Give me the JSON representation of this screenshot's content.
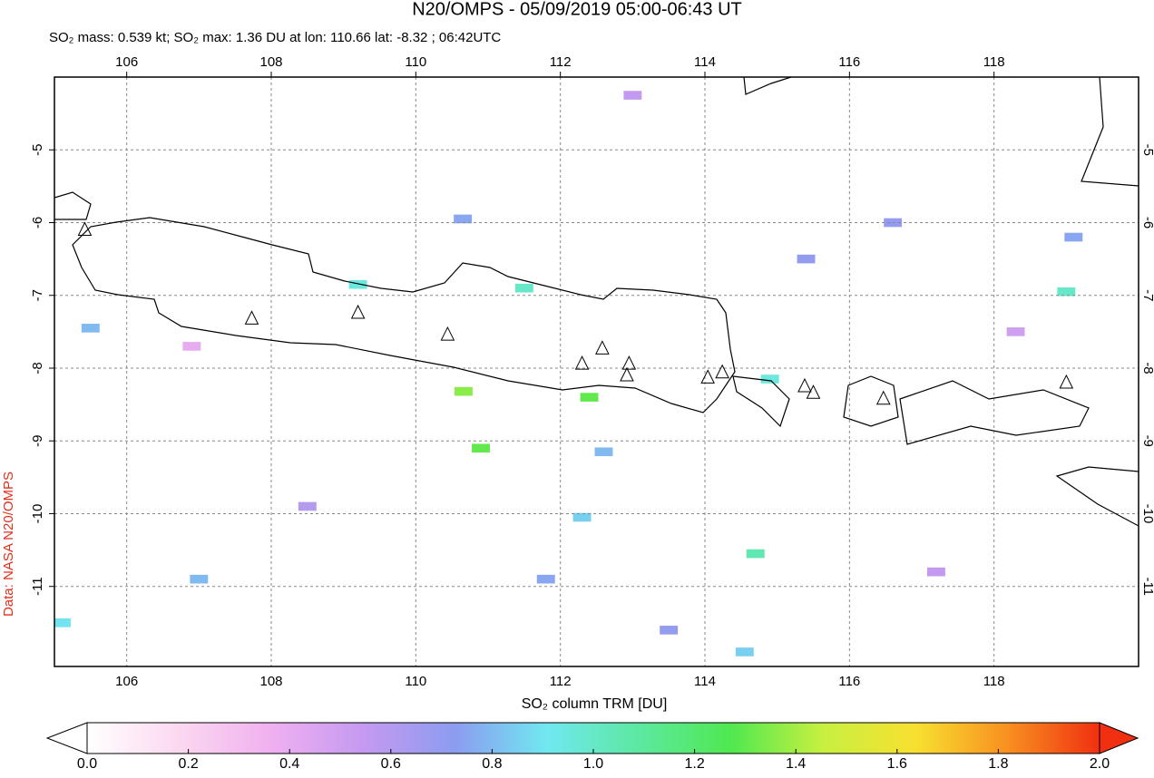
{
  "chart_data": {
    "type": "map",
    "title": "N20/OMPS - 05/09/2019 05:00-06:43 UT",
    "subtitle": "SO₂ mass: 0.539 kt; SO₂ max: 1.36 DU at lon: 110.66 lat: -8.32 ; 06:42UTC",
    "source": "Data: NASA N20/OMPS",
    "colorbar_label": "SO₂ column TRM [DU]",
    "xlim": [
      105,
      120
    ],
    "ylim": [
      -12.1,
      -4
    ],
    "xticks": [
      106,
      108,
      110,
      112,
      114,
      116,
      118
    ],
    "yticks": [
      -5,
      -6,
      -7,
      -8,
      -9,
      -10,
      -11
    ],
    "grid": true,
    "clim": [
      0,
      2
    ],
    "cticks": [
      {
        "value": 0,
        "label": "0.0"
      },
      {
        "value": 0.2,
        "label": "0.2"
      },
      {
        "value": 0.4,
        "label": "0.4"
      },
      {
        "value": 0.6,
        "label": "0.6"
      },
      {
        "value": 0.8,
        "label": "0.8"
      },
      {
        "value": 1,
        "label": "1.0"
      },
      {
        "value": 1.2,
        "label": "1.2"
      },
      {
        "value": 1.4,
        "label": "1.4"
      },
      {
        "value": 1.6,
        "label": "1.6"
      },
      {
        "value": 1.8,
        "label": "1.8"
      },
      {
        "value": 2,
        "label": "2.0"
      }
    ],
    "colormap": [
      "#ffffff",
      "#fbd8f0",
      "#f0b0f0",
      "#c49af0",
      "#8c9cf0",
      "#70e8f0",
      "#5ce8a0",
      "#50e850",
      "#c8f040",
      "#f8e030",
      "#f89020",
      "#f03010"
    ],
    "pixels": {
      "lon": [
        110.66,
        112.4,
        110.9,
        111.5,
        109.2,
        114.7,
        119.0,
        110.65,
        105.5,
        112.3,
        112.6,
        111.8,
        114.55,
        116.6,
        113.5,
        119.1,
        107.0,
        105.1,
        115.4,
        113.0,
        108.5,
        117.2,
        118.3,
        106.9,
        114.9
      ],
      "lat": [
        -8.32,
        -8.4,
        -9.1,
        -6.9,
        -6.85,
        -10.55,
        -6.95,
        -5.95,
        -7.45,
        -10.05,
        -9.15,
        -10.9,
        -11.9,
        -6.0,
        -11.6,
        -6.2,
        -10.9,
        -11.5,
        -6.5,
        -4.25,
        -9.9,
        -10.8,
        -7.5,
        -7.7,
        -8.15
      ],
      "values": [
        1.36,
        1.3,
        1.3,
        1.0,
        0.95,
        1.05,
        1.0,
        0.75,
        0.8,
        0.85,
        0.8,
        0.75,
        0.85,
        0.7,
        0.7,
        0.75,
        0.8,
        0.9,
        0.7,
        0.55,
        0.6,
        0.55,
        0.5,
        0.4,
        0.95
      ]
    },
    "volcanoes": {
      "lon": [
        105.42,
        107.73,
        109.2,
        110.44,
        112.3,
        112.58,
        112.95,
        112.92,
        114.04,
        114.24,
        115.38,
        115.5,
        116.47,
        119.0
      ],
      "lat": [
        -6.1,
        -7.32,
        -7.24,
        -7.54,
        -7.94,
        -7.73,
        -7.94,
        -8.1,
        -8.13,
        -8.06,
        -8.25,
        -8.34,
        -8.42,
        -8.2
      ]
    }
  }
}
